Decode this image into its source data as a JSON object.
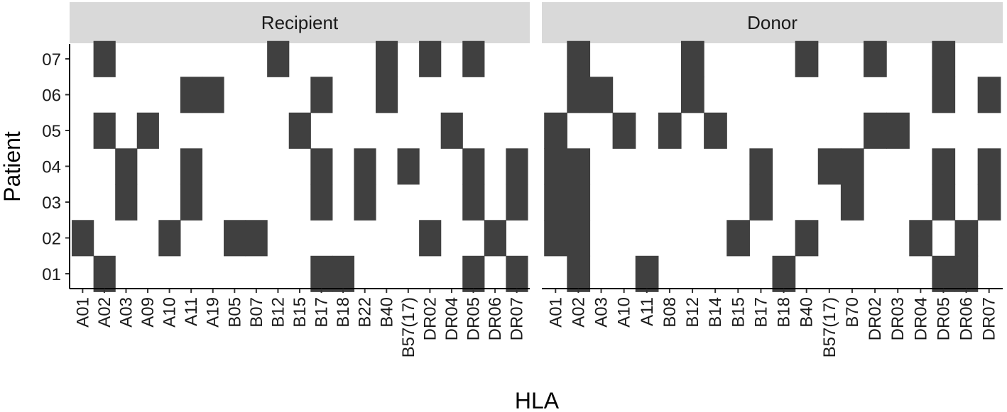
{
  "chart_data": {
    "type": "heatmap",
    "xlabel": "HLA",
    "ylabel": "Patient",
    "y_categories": [
      "01",
      "02",
      "03",
      "04",
      "05",
      "06",
      "07"
    ],
    "tile_color": "#404040",
    "strip_color": "#d9d9d9",
    "panels": [
      {
        "name": "Recipient",
        "x_categories": [
          "A01",
          "A02",
          "A03",
          "A09",
          "A10",
          "A11",
          "A19",
          "B05",
          "B07",
          "B12",
          "B15",
          "B17",
          "B18",
          "B22",
          "B40",
          "B57(17)",
          "DR02",
          "DR04",
          "DR05",
          "DR06",
          "DR07"
        ],
        "cells": [
          [
            "A02",
            "07"
          ],
          [
            "B12",
            "07"
          ],
          [
            "B40",
            "07"
          ],
          [
            "DR02",
            "07"
          ],
          [
            "DR05",
            "07"
          ],
          [
            "A11",
            "06"
          ],
          [
            "A19",
            "06"
          ],
          [
            "B17",
            "06"
          ],
          [
            "B40",
            "06"
          ],
          [
            "A02",
            "05"
          ],
          [
            "A09",
            "05"
          ],
          [
            "B15",
            "05"
          ],
          [
            "DR04",
            "05"
          ],
          [
            "A03",
            "04"
          ],
          [
            "A11",
            "04"
          ],
          [
            "B17",
            "04"
          ],
          [
            "B22",
            "04"
          ],
          [
            "B57(17)",
            "04"
          ],
          [
            "DR05",
            "04"
          ],
          [
            "DR07",
            "04"
          ],
          [
            "A03",
            "03"
          ],
          [
            "A11",
            "03"
          ],
          [
            "B17",
            "03"
          ],
          [
            "B22",
            "03"
          ],
          [
            "DR05",
            "03"
          ],
          [
            "DR07",
            "03"
          ],
          [
            "A01",
            "02"
          ],
          [
            "A10",
            "02"
          ],
          [
            "B05",
            "02"
          ],
          [
            "B07",
            "02"
          ],
          [
            "DR02",
            "02"
          ],
          [
            "DR06",
            "02"
          ],
          [
            "A02",
            "01"
          ],
          [
            "B17",
            "01"
          ],
          [
            "B18",
            "01"
          ],
          [
            "DR05",
            "01"
          ],
          [
            "DR07",
            "01"
          ]
        ]
      },
      {
        "name": "Donor",
        "x_categories": [
          "A01",
          "A02",
          "A03",
          "A10",
          "A11",
          "B08",
          "B12",
          "B14",
          "B15",
          "B17",
          "B18",
          "B40",
          "B57(17)",
          "B70",
          "DR02",
          "DR03",
          "DR04",
          "DR05",
          "DR06",
          "DR07"
        ],
        "cells": [
          [
            "A02",
            "07"
          ],
          [
            "B12",
            "07"
          ],
          [
            "B40",
            "07"
          ],
          [
            "DR02",
            "07"
          ],
          [
            "DR05",
            "07"
          ],
          [
            "A02",
            "06"
          ],
          [
            "A03",
            "06"
          ],
          [
            "B12",
            "06"
          ],
          [
            "DR05",
            "06"
          ],
          [
            "DR07",
            "06"
          ],
          [
            "A01",
            "05"
          ],
          [
            "A10",
            "05"
          ],
          [
            "B08",
            "05"
          ],
          [
            "B14",
            "05"
          ],
          [
            "DR02",
            "05"
          ],
          [
            "DR03",
            "05"
          ],
          [
            "A01",
            "04"
          ],
          [
            "A02",
            "04"
          ],
          [
            "B17",
            "04"
          ],
          [
            "B57(17)",
            "04"
          ],
          [
            "B70",
            "04"
          ],
          [
            "DR05",
            "04"
          ],
          [
            "DR07",
            "04"
          ],
          [
            "A01",
            "03"
          ],
          [
            "A02",
            "03"
          ],
          [
            "B17",
            "03"
          ],
          [
            "B70",
            "03"
          ],
          [
            "DR05",
            "03"
          ],
          [
            "DR07",
            "03"
          ],
          [
            "A01",
            "02"
          ],
          [
            "A02",
            "02"
          ],
          [
            "B15",
            "02"
          ],
          [
            "B40",
            "02"
          ],
          [
            "DR04",
            "02"
          ],
          [
            "DR06",
            "02"
          ],
          [
            "A02",
            "01"
          ],
          [
            "A11",
            "01"
          ],
          [
            "B18",
            "01"
          ],
          [
            "DR05",
            "01"
          ],
          [
            "DR06",
            "01"
          ]
        ]
      }
    ]
  }
}
